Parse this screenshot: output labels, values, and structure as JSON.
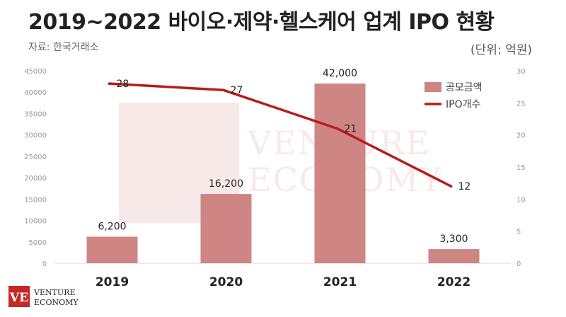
{
  "header": {
    "title": "2019~2022 바이오·제약·헬스케어 업계 IPO 현황",
    "source": "자료: 한국거래소",
    "unit": "(단위: 억원)"
  },
  "logo": {
    "line1": "VENTURE",
    "line2": "ECONOMY",
    "mark": "VE"
  },
  "colors": {
    "bar": "#d08585",
    "line": "#b71c1c",
    "watermark": "#f8e9e9"
  },
  "chart_data": {
    "type": "bar",
    "categories": [
      "2019",
      "2020",
      "2021",
      "2022"
    ],
    "series": [
      {
        "name": "공모금액",
        "type": "bar",
        "axis": "left",
        "values": [
          6200,
          16200,
          42000,
          3300
        ],
        "labels": [
          "6,200",
          "16,200",
          "42,000",
          "3,300"
        ]
      },
      {
        "name": "IPO개수",
        "type": "line",
        "axis": "right",
        "values": [
          28,
          27,
          21,
          12
        ],
        "labels": [
          "28",
          "27",
          "21",
          "12"
        ]
      }
    ],
    "ylim_left": [
      0,
      45000
    ],
    "left_ticks": [
      0,
      5000,
      10000,
      15000,
      20000,
      25000,
      30000,
      35000,
      40000,
      45000
    ],
    "ylim_right": [
      0,
      30
    ],
    "right_ticks": [
      0,
      5,
      10,
      15,
      20,
      25,
      30
    ],
    "legend_position": "top-right",
    "watermark_text": [
      "VENTURE",
      "ECONOMY"
    ]
  }
}
